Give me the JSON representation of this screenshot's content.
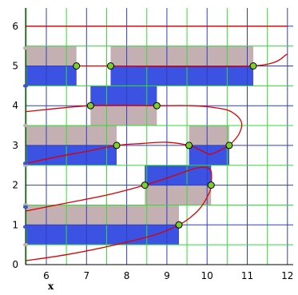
{
  "chart_data": {
    "type": "line",
    "xlabel": "x",
    "ylabel": "",
    "xlim": [
      5.5,
      12
    ],
    "ylim": [
      0,
      6.3
    ],
    "x_ticks": [
      6,
      7,
      8,
      9,
      10,
      11,
      12
    ],
    "y_ticks": [
      0,
      1,
      2,
      3,
      4,
      5,
      6
    ],
    "grid": true,
    "grid_minor_step": 0.5,
    "colors": {
      "background": "#ffffff",
      "grid_major": "#2f3fbf",
      "grid_minor": "#33dd33",
      "curve": "#dd0000",
      "blue_fill": "#3b52e3",
      "gray_fill": "#c4b0b2",
      "point_fill": "#7fcf2a",
      "point_stroke": "#000000",
      "gray_markers": "#c4b0b2",
      "blue_markers": "#3b52e3"
    },
    "x_offset": 5.5,
    "rect_fills": [
      {
        "x0": 5.5,
        "x1": 6.75,
        "y0": 4.5,
        "y1": 5.5,
        "color": "gray"
      },
      {
        "x0": 7.6,
        "x1": 11.15,
        "y0": 4.5,
        "y1": 5.5,
        "color": "gray"
      },
      {
        "x0": 5.5,
        "x1": 6.75,
        "y0": 4.5,
        "y1": 5.0,
        "color": "blue"
      },
      {
        "x0": 7.6,
        "x1": 11.15,
        "y0": 4.5,
        "y1": 5.0,
        "color": "blue"
      },
      {
        "x0": 7.1,
        "x1": 8.75,
        "y0": 3.5,
        "y1": 4.5,
        "color": "gray"
      },
      {
        "x0": 7.1,
        "x1": 8.75,
        "y0": 4.0,
        "y1": 4.5,
        "color": "blue"
      },
      {
        "x0": 5.5,
        "x1": 7.75,
        "y0": 2.5,
        "y1": 3.5,
        "color": "gray"
      },
      {
        "x0": 5.5,
        "x1": 7.75,
        "y0": 2.5,
        "y1": 3.0,
        "color": "blue"
      },
      {
        "x0": 9.55,
        "x1": 10.55,
        "y0": 2.5,
        "y1": 3.5,
        "color": "gray"
      },
      {
        "x0": 9.55,
        "x1": 10.55,
        "y0": 2.5,
        "y1": 3.0,
        "color": "blue"
      },
      {
        "x0": 8.45,
        "x1": 10.1,
        "y0": 1.5,
        "y1": 2.5,
        "color": "gray"
      },
      {
        "x0": 8.45,
        "x1": 10.1,
        "y0": 2.0,
        "y1": 2.5,
        "color": "blue"
      },
      {
        "x0": 5.5,
        "x1": 9.3,
        "y0": 0.5,
        "y1": 1.5,
        "color": "gray"
      },
      {
        "x0": 5.5,
        "x1": 9.3,
        "y0": 0.5,
        "y1": 1.0,
        "color": "blue"
      }
    ],
    "intersection_points": [
      {
        "x": 6.75,
        "y": 5.0
      },
      {
        "x": 7.6,
        "y": 5.0
      },
      {
        "x": 11.15,
        "y": 5.0
      },
      {
        "x": 7.1,
        "y": 4.0
      },
      {
        "x": 8.75,
        "y": 4.0
      },
      {
        "x": 7.75,
        "y": 3.0
      },
      {
        "x": 9.55,
        "y": 3.0
      },
      {
        "x": 10.55,
        "y": 3.0
      },
      {
        "x": 8.45,
        "y": 2.0
      },
      {
        "x": 10.1,
        "y": 2.0
      },
      {
        "x": 9.3,
        "y": 1.0
      }
    ],
    "curves": [
      {
        "points": [
          [
            5.5,
            6.0
          ],
          [
            12.0,
            6.0
          ]
        ]
      },
      {
        "points": [
          [
            6.75,
            5.0
          ],
          [
            7.6,
            5.0
          ],
          [
            11.15,
            5.0
          ],
          [
            12.0,
            5.3
          ]
        ]
      },
      {
        "points": [
          [
            5.5,
            3.85
          ],
          [
            7.1,
            4.0
          ],
          [
            8.75,
            4.0
          ],
          [
            9.6,
            4.0
          ],
          [
            10.2,
            3.95
          ],
          [
            10.6,
            3.85
          ],
          [
            10.85,
            3.6
          ],
          [
            10.8,
            3.3
          ],
          [
            10.55,
            3.0
          ],
          [
            10.4,
            2.92
          ],
          [
            10.2,
            2.82
          ],
          [
            10.05,
            2.78
          ],
          [
            9.8,
            2.9
          ],
          [
            9.55,
            3.0
          ],
          [
            9.0,
            3.08
          ],
          [
            8.4,
            3.05
          ],
          [
            7.75,
            3.0
          ],
          [
            7.0,
            2.85
          ],
          [
            6.3,
            2.72
          ],
          [
            5.5,
            2.55
          ]
        ]
      },
      {
        "points": [
          [
            5.5,
            1.35
          ],
          [
            6.5,
            1.55
          ],
          [
            7.5,
            1.75
          ],
          [
            8.45,
            2.0
          ],
          [
            9.0,
            2.18
          ],
          [
            9.4,
            2.32
          ],
          [
            9.7,
            2.42
          ],
          [
            9.95,
            2.45
          ],
          [
            10.1,
            2.35
          ],
          [
            10.1,
            2.0
          ],
          [
            10.05,
            1.8
          ],
          [
            9.85,
            1.45
          ],
          [
            9.6,
            1.2
          ],
          [
            9.3,
            1.0
          ],
          [
            8.7,
            0.75
          ],
          [
            7.5,
            0.45
          ],
          [
            6.5,
            0.25
          ],
          [
            5.5,
            0.1
          ]
        ]
      }
    ],
    "left_markers_gray_y": [
      5.45,
      3.5,
      2.5,
      1.5,
      0.5
    ],
    "left_markers_blue_y": [
      4.5,
      2.55,
      1.45,
      0.95
    ]
  }
}
